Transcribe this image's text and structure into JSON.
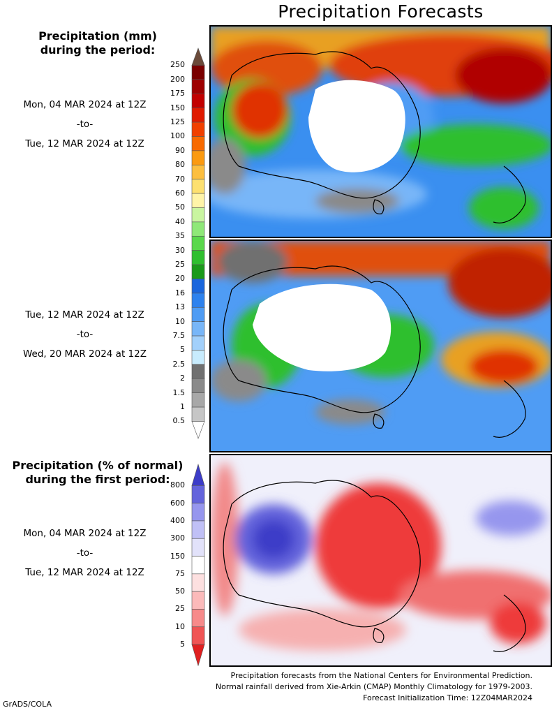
{
  "title": "Precipitation Forecasts",
  "precip_header": {
    "line1": "Precipitation (mm)",
    "line2": "during the period:"
  },
  "period1": {
    "start": "Mon, 04 MAR 2024 at 12Z",
    "to": "-to-",
    "end": "Tue, 12 MAR 2024 at 12Z"
  },
  "period2": {
    "start": "Tue, 12 MAR 2024 at 12Z",
    "to": "-to-",
    "end": "Wed, 20 MAR 2024 at 12Z"
  },
  "percent_header": {
    "line1": "Precipitation (% of normal)",
    "line2": "during the first period:"
  },
  "period3": {
    "start": "Mon, 04 MAR 2024 at 12Z",
    "to": "-to-",
    "end": "Tue, 12 MAR 2024 at 12Z"
  },
  "precip_scale": {
    "labels": [
      "250",
      "200",
      "175",
      "150",
      "125",
      "100",
      "90",
      "80",
      "70",
      "60",
      "50",
      "40",
      "35",
      "30",
      "25",
      "20",
      "16",
      "13",
      "10",
      "7.5",
      "5",
      "2.5",
      "2",
      "1.5",
      "1",
      "0.5"
    ],
    "colors": [
      "#6b4a3a",
      "#7a0000",
      "#9e0000",
      "#c20000",
      "#e01a00",
      "#f04000",
      "#f86a00",
      "#fb9a10",
      "#fcbf40",
      "#fde070",
      "#fff4a8",
      "#c9f5a0",
      "#8fe878",
      "#5ad84c",
      "#2fbf2f",
      "#1a9a1a",
      "#1a66dd",
      "#2e82ee",
      "#4f9cf4",
      "#78b6f8",
      "#a2d0fb",
      "#c8ecfd",
      "#707070",
      "#8a8a8a",
      "#a8a8a8",
      "#c6c6c6",
      "#ffffff"
    ]
  },
  "percent_scale": {
    "labels": [
      "800",
      "600",
      "400",
      "300",
      "150",
      "75",
      "50",
      "25",
      "10",
      "5"
    ],
    "colors": [
      "#3c3cc8",
      "#6464dc",
      "#9696ee",
      "#c0c0f6",
      "#e2e2fa",
      "#ffffff",
      "#fde0e0",
      "#fbbaba",
      "#f78a8a",
      "#f05454",
      "#e02020"
    ]
  },
  "footer": {
    "line1": "Precipitation forecasts from the National Centers for Environmental Prediction.",
    "line2": "Normal rainfall derived from Xie-Arkin (CMAP) Monthly Climatology for 1979-2003.",
    "line3": "Forecast Initialization Time: 12Z04MAR2024"
  },
  "brand": "GrADS/COLA"
}
